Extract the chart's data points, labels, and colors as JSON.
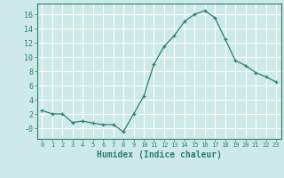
{
  "x": [
    0,
    1,
    2,
    3,
    4,
    5,
    6,
    7,
    8,
    9,
    10,
    11,
    12,
    13,
    14,
    15,
    16,
    17,
    18,
    19,
    20,
    21,
    22,
    23
  ],
  "y": [
    2.5,
    2.0,
    2.0,
    0.8,
    1.0,
    0.7,
    0.5,
    0.5,
    -0.5,
    2.0,
    4.5,
    9.0,
    11.5,
    13.0,
    15.0,
    16.0,
    16.5,
    15.5,
    12.5,
    9.5,
    8.8,
    7.8,
    7.2,
    6.5
  ],
  "line_color": "#2e7d6e",
  "marker": "+",
  "bg_color": "#cdeae8",
  "grid_color": "#ffffff",
  "tick_label_color": "#2e7d6e",
  "xlabel": "Humidex (Indice chaleur)",
  "xlabel_fontsize": 7,
  "ylabel_ticks": [
    0,
    2,
    4,
    6,
    8,
    10,
    12,
    14,
    16
  ],
  "ytick_labels": [
    "-0",
    "2",
    "4",
    "6",
    "8",
    "10",
    "12",
    "14",
    "16"
  ],
  "ylim": [
    -1.5,
    17.5
  ],
  "xlim": [
    -0.5,
    23.5
  ]
}
